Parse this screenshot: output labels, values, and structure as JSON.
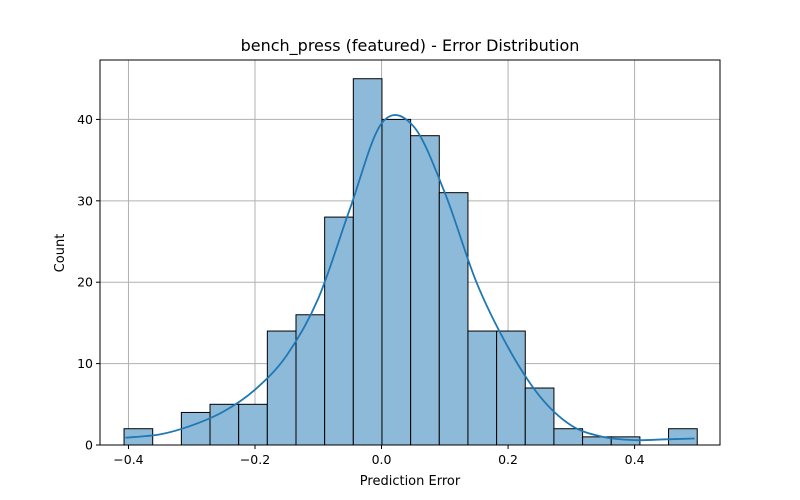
{
  "chart_data": {
    "type": "bar",
    "title": "bench_press (featured) - Error Distribution",
    "xlabel": "Prediction Error",
    "ylabel": "Count",
    "xlim": [
      -0.445,
      0.535
    ],
    "ylim": [
      0,
      47.3
    ],
    "grid": true,
    "bin_edges": [
      -0.407,
      -0.3617,
      -0.3164,
      -0.2711,
      -0.2258,
      -0.1805,
      -0.1352,
      -0.0899,
      -0.0446,
      0.0007,
      0.046,
      0.0913,
      0.1366,
      0.1819,
      0.2272,
      0.2725,
      0.3178,
      0.3631,
      0.4084,
      0.4537,
      0.499
    ],
    "counts": [
      2,
      0,
      4,
      5,
      5,
      14,
      16,
      28,
      45,
      40,
      38,
      31,
      14,
      14,
      7,
      2,
      1,
      1,
      0,
      2
    ],
    "kde": {
      "x": [
        -0.405,
        -0.35,
        -0.3,
        -0.25,
        -0.2,
        -0.15,
        -0.1,
        -0.05,
        0.0,
        0.05,
        0.1,
        0.15,
        0.2,
        0.25,
        0.3,
        0.35,
        0.4,
        0.45,
        0.495
      ],
      "y": [
        0.9,
        1.3,
        2.4,
        4.1,
        6.8,
        11.0,
        18.0,
        29.0,
        39.5,
        39.2,
        31.0,
        20.0,
        12.0,
        6.0,
        2.4,
        1.0,
        0.6,
        0.7,
        0.8
      ]
    },
    "xticks": [
      -0.4,
      -0.2,
      0.0,
      0.2,
      0.4
    ],
    "xtick_labels": [
      "−0.4",
      "−0.2",
      "0.0",
      "0.2",
      "0.4"
    ],
    "yticks": [
      0,
      10,
      20,
      30,
      40
    ],
    "ytick_labels": [
      "0",
      "10",
      "20",
      "30",
      "40"
    ],
    "colors": {
      "bar_fill": "#8ebad9",
      "bar_edge": "#000000",
      "kde_line": "#1f77b4",
      "grid": "#b0b0b0"
    }
  }
}
